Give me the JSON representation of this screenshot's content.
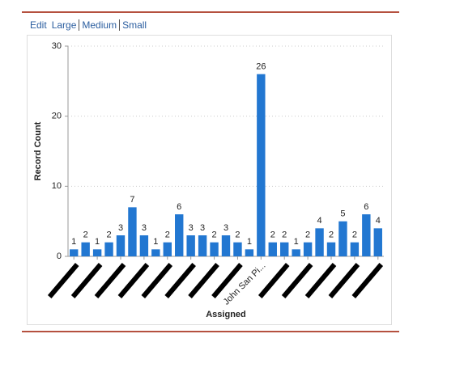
{
  "links": [
    "Edit",
    "Large",
    "Medium",
    "Small"
  ],
  "chart_data": {
    "type": "bar",
    "x_label": "Assigned",
    "y_label": "Record Count",
    "categories": [
      null,
      null,
      null,
      null,
      null,
      null,
      null,
      null,
      null,
      null,
      null,
      null,
      null,
      null,
      null,
      null,
      "John San Pi...",
      null,
      null,
      null,
      null,
      null,
      null,
      null,
      null,
      null,
      null
    ],
    "values": [
      1,
      2,
      1,
      2,
      3,
      7,
      3,
      1,
      2,
      6,
      3,
      3,
      2,
      3,
      2,
      1,
      26,
      2,
      2,
      1,
      2,
      4,
      2,
      5,
      2,
      6,
      4
    ],
    "color": "#2277d1",
    "ylim": [
      0,
      30
    ],
    "yticks": [
      0,
      10,
      20,
      30
    ],
    "grid": true
  }
}
